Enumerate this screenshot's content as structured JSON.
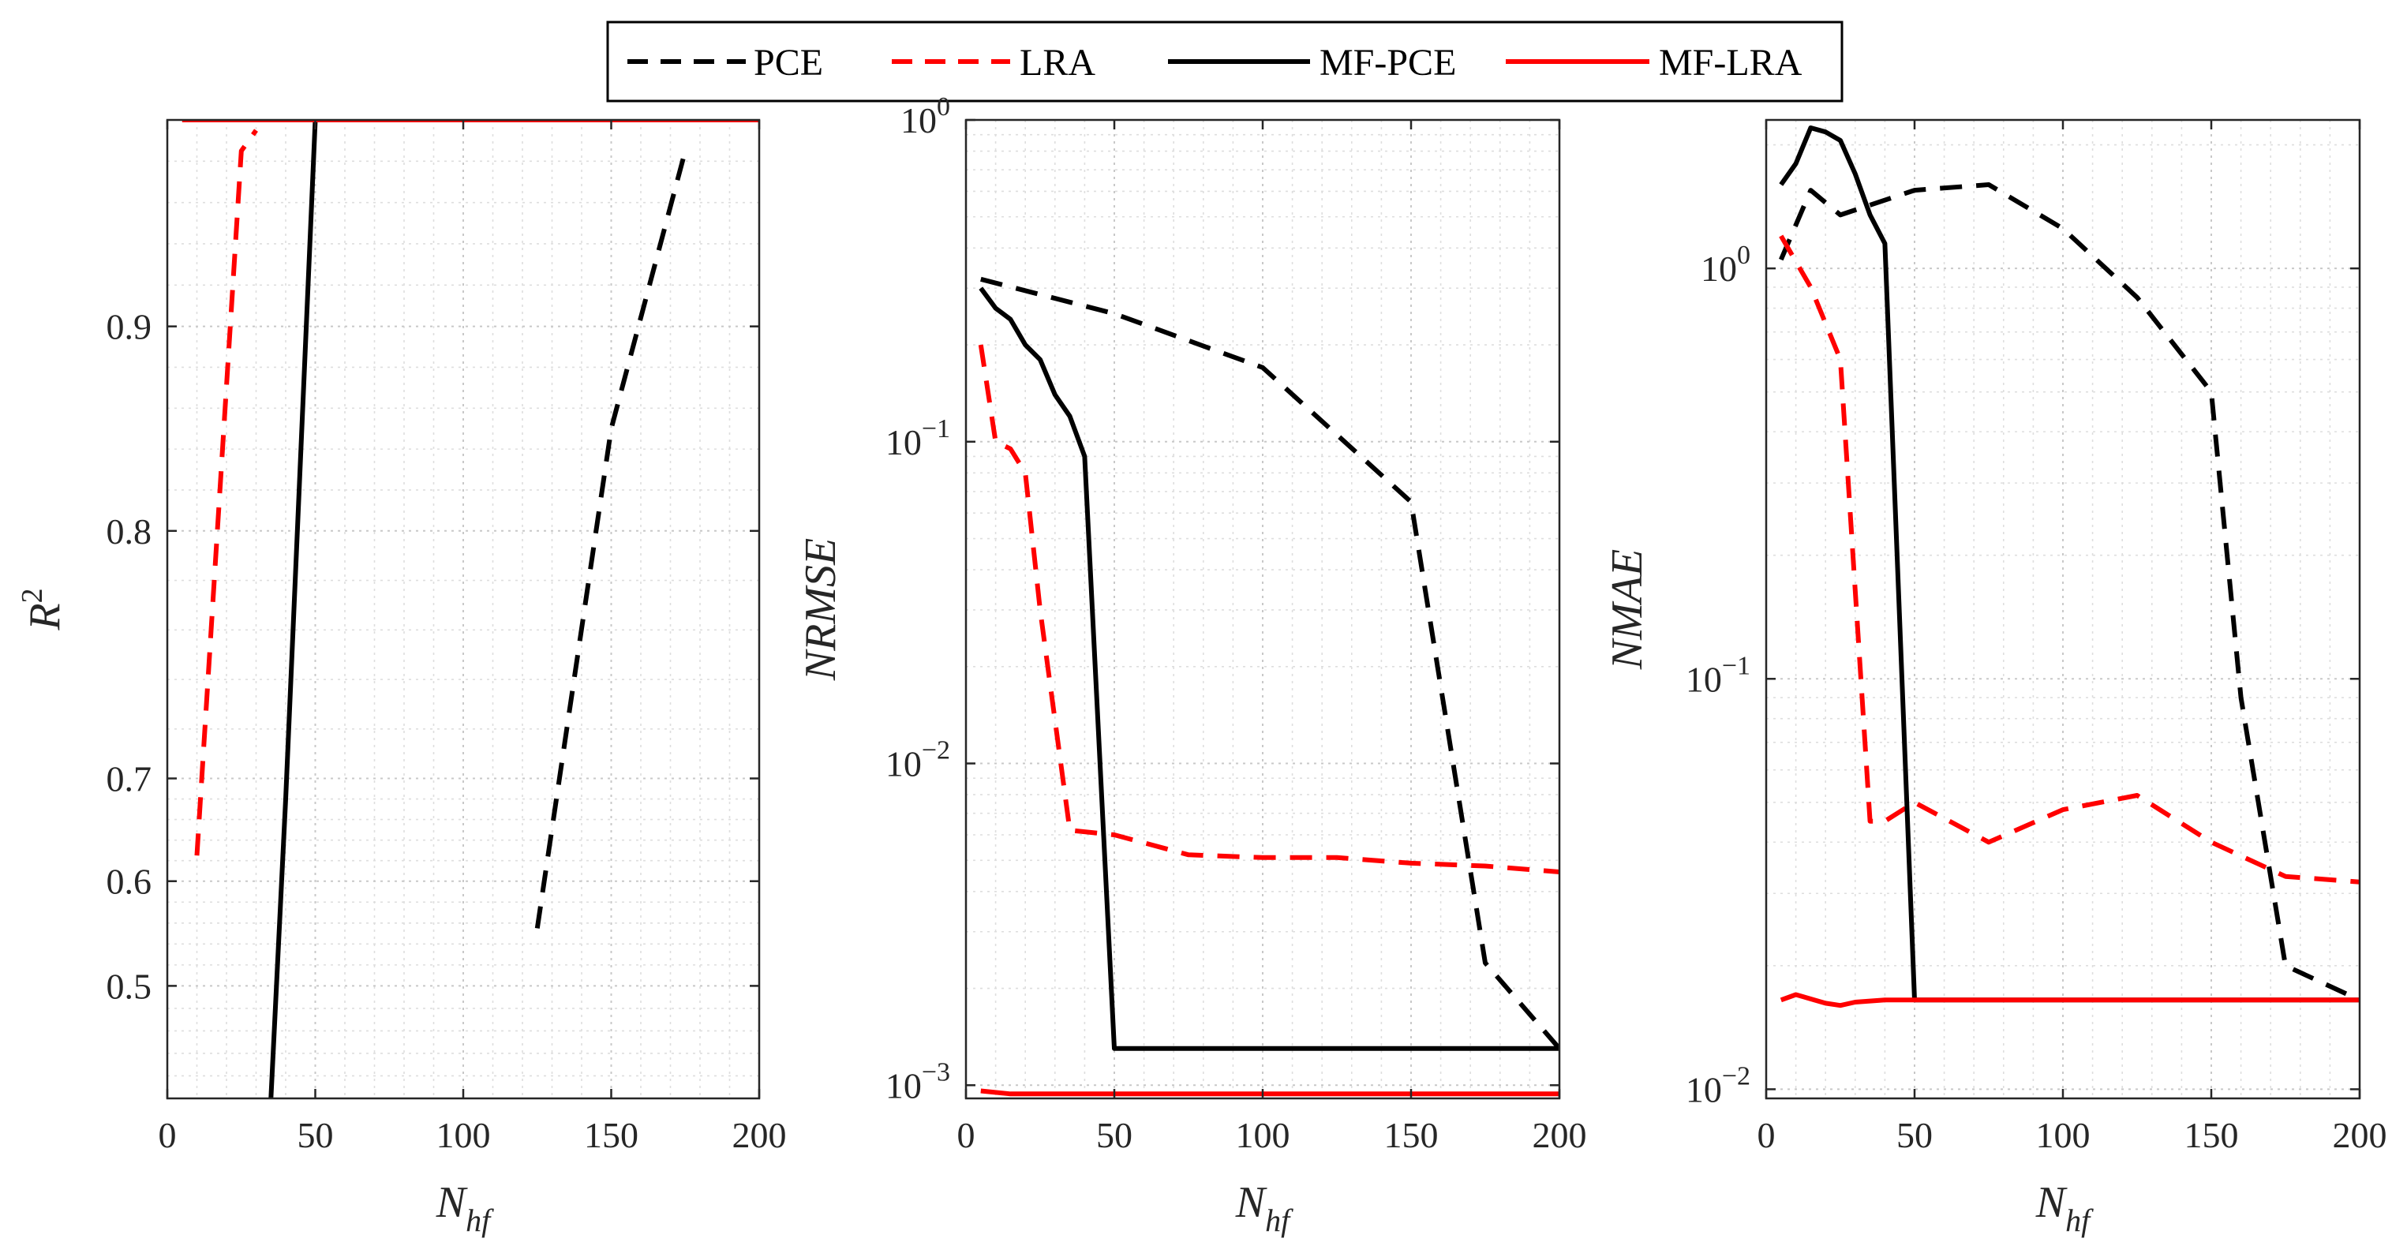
{
  "legend": {
    "entries": [
      {
        "key": "pce",
        "label": "PCE",
        "color": "#000000",
        "style": "dashed"
      },
      {
        "key": "lra",
        "label": "LRA",
        "color": "#ff0000",
        "style": "dashed"
      },
      {
        "key": "mf_pce",
        "label": "MF-PCE",
        "color": "#000000",
        "style": "solid"
      },
      {
        "key": "mf_lra",
        "label": "MF-LRA",
        "color": "#ff0000",
        "style": "solid"
      }
    ]
  },
  "chart_data": [
    {
      "type": "line",
      "id": "r2",
      "ylabel": "R",
      "ylabel_sup": "2",
      "xlabel": "N",
      "xlabel_sub": "hf",
      "xlim": [
        0,
        200
      ],
      "ylim": [
        0.4,
        1.0
      ],
      "yscale": "nonlinear",
      "xticks": [
        0,
        50,
        100,
        150,
        200
      ],
      "xtick_labels": [
        "0",
        "50",
        "100",
        "150",
        "200"
      ],
      "yticks": [
        0.5,
        0.6,
        0.7,
        0.8,
        0.9
      ],
      "ytick_labels": [
        "0.5",
        "0.6",
        "0.7",
        "0.8",
        "0.9"
      ],
      "grid": true,
      "series": [
        {
          "name": "PCE",
          "x": [
            125,
            150,
            175
          ],
          "y": [
            0.555,
            0.85,
            0.985
          ]
        },
        {
          "name": "LRA",
          "x": [
            10,
            25,
            30
          ],
          "y": [
            0.625,
            0.985,
            0.995
          ]
        },
        {
          "name": "MF-PCE",
          "x": [
            35,
            40,
            50
          ],
          "y": [
            0.4,
            0.68,
            1.0
          ]
        },
        {
          "name": "MF-LRA",
          "x": [
            5,
            200
          ],
          "y": [
            1.0,
            1.0
          ]
        }
      ]
    },
    {
      "type": "line",
      "id": "nrmse",
      "ylabel": "NRMSE",
      "xlabel": "N",
      "xlabel_sub": "hf",
      "xlim": [
        0,
        200
      ],
      "ylim": [
        0.00091,
        1.0
      ],
      "yscale": "log",
      "xticks": [
        0,
        50,
        100,
        150,
        200
      ],
      "xtick_labels": [
        "0",
        "50",
        "100",
        "150",
        "200"
      ],
      "yticks": [
        0.001,
        0.01,
        0.1,
        1.0
      ],
      "ytick_base": "10",
      "ytick_exps": [
        "−3",
        "−2",
        "−1",
        "0"
      ],
      "grid": true,
      "series": [
        {
          "name": "PCE",
          "x": [
            5,
            50,
            100,
            150,
            175,
            200
          ],
          "y": [
            0.32,
            0.25,
            0.17,
            0.065,
            0.0024,
            0.0013
          ]
        },
        {
          "name": "LRA",
          "x": [
            5,
            10,
            15,
            20,
            25,
            35,
            50,
            75,
            100,
            125,
            150,
            175,
            200
          ],
          "y": [
            0.2,
            0.1,
            0.095,
            0.08,
            0.03,
            0.0062,
            0.006,
            0.0052,
            0.0051,
            0.0051,
            0.0049,
            0.0048,
            0.0046
          ]
        },
        {
          "name": "MF-PCE",
          "x": [
            5,
            10,
            15,
            20,
            25,
            30,
            35,
            40,
            50,
            100,
            150,
            200
          ],
          "y": [
            0.3,
            0.26,
            0.24,
            0.2,
            0.18,
            0.14,
            0.12,
            0.09,
            0.0013,
            0.0013,
            0.0013,
            0.0013
          ]
        },
        {
          "name": "MF-LRA",
          "x": [
            5,
            15,
            200
          ],
          "y": [
            0.00096,
            0.00094,
            0.00094
          ]
        }
      ]
    },
    {
      "type": "line",
      "id": "nmae",
      "ylabel": "NMAE",
      "xlabel": "N",
      "xlabel_sub": "hf",
      "xlim": [
        0,
        200
      ],
      "ylim": [
        0.0095,
        2.3
      ],
      "yscale": "log",
      "xticks": [
        0,
        50,
        100,
        150,
        200
      ],
      "xtick_labels": [
        "0",
        "50",
        "100",
        "150",
        "200"
      ],
      "yticks": [
        0.01,
        0.1,
        1.0
      ],
      "ytick_base": "10",
      "ytick_exps": [
        "−2",
        "−1",
        "0"
      ],
      "grid": true,
      "series": [
        {
          "name": "PCE",
          "x": [
            5,
            15,
            25,
            50,
            75,
            100,
            125,
            150,
            160,
            175,
            200
          ],
          "y": [
            1.05,
            1.55,
            1.35,
            1.55,
            1.6,
            1.25,
            0.85,
            0.5,
            0.09,
            0.02,
            0.0165
          ]
        },
        {
          "name": "LRA",
          "x": [
            5,
            15,
            25,
            35,
            40,
            50,
            75,
            100,
            125,
            150,
            175,
            200
          ],
          "y": [
            1.2,
            0.9,
            0.6,
            0.045,
            0.045,
            0.05,
            0.04,
            0.048,
            0.052,
            0.04,
            0.033,
            0.032
          ]
        },
        {
          "name": "MF-PCE",
          "x": [
            5,
            10,
            15,
            20,
            25,
            30,
            35,
            40,
            50,
            100,
            150,
            200
          ],
          "y": [
            1.6,
            1.8,
            2.2,
            2.15,
            2.05,
            1.7,
            1.35,
            1.15,
            0.0165,
            0.0165,
            0.0165,
            0.0165
          ]
        },
        {
          "name": "MF-LRA",
          "x": [
            5,
            10,
            20,
            25,
            30,
            40,
            200
          ],
          "y": [
            0.0165,
            0.017,
            0.0162,
            0.016,
            0.0163,
            0.0165,
            0.0165
          ]
        }
      ]
    }
  ]
}
